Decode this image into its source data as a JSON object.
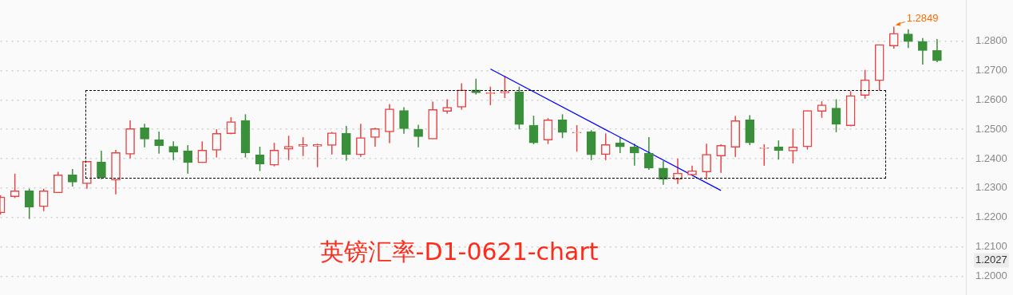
{
  "chart_data": {
    "type": "candlestick",
    "categories": [
      null,
      null,
      null,
      null,
      null,
      null,
      null,
      null,
      null,
      null,
      null,
      null,
      null,
      null,
      null,
      null,
      null,
      null,
      null,
      null,
      null,
      null,
      null,
      null,
      null,
      null,
      null,
      null,
      null,
      null,
      null,
      null,
      null,
      null,
      null,
      null,
      null,
      null,
      null,
      null,
      null,
      null,
      null,
      null,
      null,
      null,
      null,
      null,
      null,
      null,
      null,
      null,
      null,
      null,
      null,
      null,
      null,
      null,
      null,
      null,
      null,
      null,
      null,
      null,
      null,
      null,
      null,
      null
    ],
    "ohlc": [
      [
        1.2216,
        1.2275,
        1.221,
        1.227
      ],
      [
        1.2271,
        1.2349,
        1.2266,
        1.2291
      ],
      [
        1.2291,
        1.2298,
        1.2195,
        1.2235
      ],
      [
        1.2237,
        1.2298,
        1.2222,
        1.2291
      ],
      [
        1.2284,
        1.2355,
        1.2284,
        1.2345
      ],
      [
        1.2345,
        1.2365,
        1.2305,
        1.232
      ],
      [
        1.2315,
        1.2391,
        1.2298,
        1.2391
      ],
      [
        1.2389,
        1.2427,
        1.233,
        1.2336
      ],
      [
        1.2327,
        1.243,
        1.2279,
        1.2421
      ],
      [
        1.2415,
        1.253,
        1.2401,
        1.2502
      ],
      [
        1.2505,
        1.2519,
        1.2439,
        1.2467
      ],
      [
        1.2464,
        1.2492,
        1.2417,
        1.2444
      ],
      [
        1.2442,
        1.2459,
        1.2395,
        1.2422
      ],
      [
        1.2427,
        1.2446,
        1.2349,
        1.2387
      ],
      [
        1.2386,
        1.2459,
        1.2386,
        1.2429
      ],
      [
        1.2429,
        1.25,
        1.2404,
        1.2486
      ],
      [
        1.2485,
        1.2541,
        1.2483,
        1.2526
      ],
      [
        1.253,
        1.2551,
        1.2404,
        1.242
      ],
      [
        1.2413,
        1.2441,
        1.2358,
        1.2382
      ],
      [
        1.2378,
        1.2454,
        1.2374,
        1.2429
      ],
      [
        1.2432,
        1.2478,
        1.2395,
        1.2442
      ],
      [
        1.2442,
        1.2473,
        1.2409,
        1.2448
      ],
      [
        1.2442,
        1.2451,
        1.2371,
        1.2448
      ],
      [
        1.2445,
        1.2491,
        1.2414,
        1.2488
      ],
      [
        1.2486,
        1.2511,
        1.2393,
        1.2414
      ],
      [
        1.2413,
        1.2519,
        1.2406,
        1.2472
      ],
      [
        1.2472,
        1.2505,
        1.2441,
        1.2502
      ],
      [
        1.2491,
        1.2586,
        1.2453,
        1.2569
      ],
      [
        1.2564,
        1.2575,
        1.2485,
        1.2502
      ],
      [
        1.25,
        1.2515,
        1.2439,
        1.2475
      ],
      [
        1.2467,
        1.2594,
        1.2467,
        1.2567
      ],
      [
        1.2561,
        1.2602,
        1.2553,
        1.2575
      ],
      [
        1.2575,
        1.2656,
        1.2567,
        1.2634
      ],
      [
        1.2634,
        1.2672,
        1.2618,
        1.2624
      ],
      [
        1.2621,
        1.2645,
        1.2582,
        1.2624
      ],
      [
        1.2624,
        1.2681,
        1.2606,
        1.2629
      ],
      [
        1.2627,
        1.2645,
        1.25,
        1.2516
      ],
      [
        1.2514,
        1.2546,
        1.2449,
        1.2454
      ],
      [
        1.2463,
        1.2538,
        1.245,
        1.2532
      ],
      [
        1.2532,
        1.2551,
        1.247,
        1.2489
      ],
      [
        1.2488,
        1.2514,
        1.2424,
        1.249
      ],
      [
        1.2492,
        1.2497,
        1.2395,
        1.2413
      ],
      [
        1.2414,
        1.2486,
        1.2395,
        1.2448
      ],
      [
        1.2454,
        1.2473,
        1.2419,
        1.244
      ],
      [
        1.244,
        1.2451,
        1.2376,
        1.2419
      ],
      [
        1.2419,
        1.2473,
        1.2362,
        1.2368
      ],
      [
        1.2368,
        1.2392,
        1.2311,
        1.233
      ],
      [
        1.233,
        1.24,
        1.2314,
        1.2351
      ],
      [
        1.2345,
        1.2376,
        1.2345,
        1.2359
      ],
      [
        1.2355,
        1.2451,
        1.2328,
        1.2415
      ],
      [
        1.2409,
        1.2449,
        1.2352,
        1.2445
      ],
      [
        1.2439,
        1.2545,
        1.2406,
        1.2529
      ],
      [
        1.2532,
        1.2548,
        1.2446,
        1.2454
      ],
      [
        1.2435,
        1.2449,
        1.2376,
        1.2437
      ],
      [
        1.244,
        1.2462,
        1.2397,
        1.2428
      ],
      [
        1.2426,
        1.2502,
        1.2384,
        1.244
      ],
      [
        1.244,
        1.2564,
        1.2431,
        1.2564
      ],
      [
        1.2561,
        1.2595,
        1.2539,
        1.2583
      ],
      [
        1.2572,
        1.2602,
        1.249,
        1.2517
      ],
      [
        1.2512,
        1.2629,
        1.251,
        1.2615
      ],
      [
        1.2615,
        1.2702,
        1.2604,
        1.2668
      ],
      [
        1.2665,
        1.2788,
        1.2632,
        1.2788
      ],
      [
        1.2783,
        1.2849,
        1.2774,
        1.2826
      ],
      [
        1.2824,
        1.284,
        1.2776,
        1.2798
      ],
      [
        1.2799,
        1.281,
        1.272,
        1.2768
      ],
      [
        1.2768,
        1.2807,
        1.2728,
        1.2733
      ],
      null,
      null
    ],
    "colors": [
      "#e84545",
      "#e84545",
      "#3a8f3a",
      "#e84545",
      "#e84545",
      "#3a8f3a",
      "#e84545",
      "#3a8f3a",
      "#e84545",
      "#e84545",
      "#3a8f3a",
      "#3a8f3a",
      "#3a8f3a",
      "#3a8f3a",
      "#e84545",
      "#e84545",
      "#e84545",
      "#3a8f3a",
      "#3a8f3a",
      "#e84545",
      "#e84545",
      "#e84545",
      "#e84545",
      "#e84545",
      "#3a8f3a",
      "#e84545",
      "#e84545",
      "#e84545",
      "#3a8f3a",
      "#3a8f3a",
      "#e84545",
      "#e84545",
      "#e84545",
      "#3a8f3a",
      "#e84545",
      "#e84545",
      "#3a8f3a",
      "#3a8f3a",
      "#e84545",
      "#3a8f3a",
      "#e84545",
      "#3a8f3a",
      "#e84545",
      "#3a8f3a",
      "#3a8f3a",
      "#3a8f3a",
      "#3a8f3a",
      "#e84545",
      "#e84545",
      "#e84545",
      "#e84545",
      "#e84545",
      "#3a8f3a",
      "#e84545",
      "#3a8f3a",
      "#e84545",
      "#e84545",
      "#e84545",
      "#3a8f3a",
      "#e84545",
      "#e84545",
      "#e84545",
      "#e84545",
      "#3a8f3a",
      "#3a8f3a",
      "#3a8f3a",
      null,
      null
    ],
    "series": [
      {
        "type": "line",
        "color": "#0000ff",
        "values": [
          null,
          null,
          null,
          null,
          null,
          null,
          null,
          null,
          null,
          null,
          null,
          null,
          null,
          null,
          null,
          null,
          null,
          null,
          null,
          null,
          null,
          null,
          null,
          null,
          null,
          null,
          null,
          null,
          null,
          null,
          null,
          null,
          null,
          null,
          1.2705,
          null,
          null,
          null,
          null,
          null,
          null,
          null,
          null,
          null,
          null,
          null,
          null,
          null,
          null,
          null,
          1.2292,
          null,
          null,
          null,
          null,
          null,
          null,
          null,
          null,
          null,
          null,
          null,
          null,
          null,
          null,
          null,
          null,
          null
        ]
      }
    ],
    "ylim": [
      1.1938,
      1.2938
    ],
    "yticks": [
      {
        "value": 1.2,
        "label": "1.2000"
      },
      {
        "value": 1.21,
        "label": "1.2100"
      },
      {
        "value": 1.22,
        "label": "1.2200"
      },
      {
        "value": 1.23,
        "label": "1.2300"
      },
      {
        "value": 1.24,
        "label": "1.2400"
      },
      {
        "value": 1.25,
        "label": "1.2500"
      },
      {
        "value": 1.26,
        "label": "1.2600"
      },
      {
        "value": 1.27,
        "label": "1.2700"
      },
      {
        "value": 1.28,
        "label": "1.2800"
      }
    ],
    "tick_labels": "y",
    "grid": "y",
    "legend": false,
    "annotations": [
      "英镑汇率-D1-0621-chart",
      "1.2849",
      "1.2027"
    ]
  }
}
